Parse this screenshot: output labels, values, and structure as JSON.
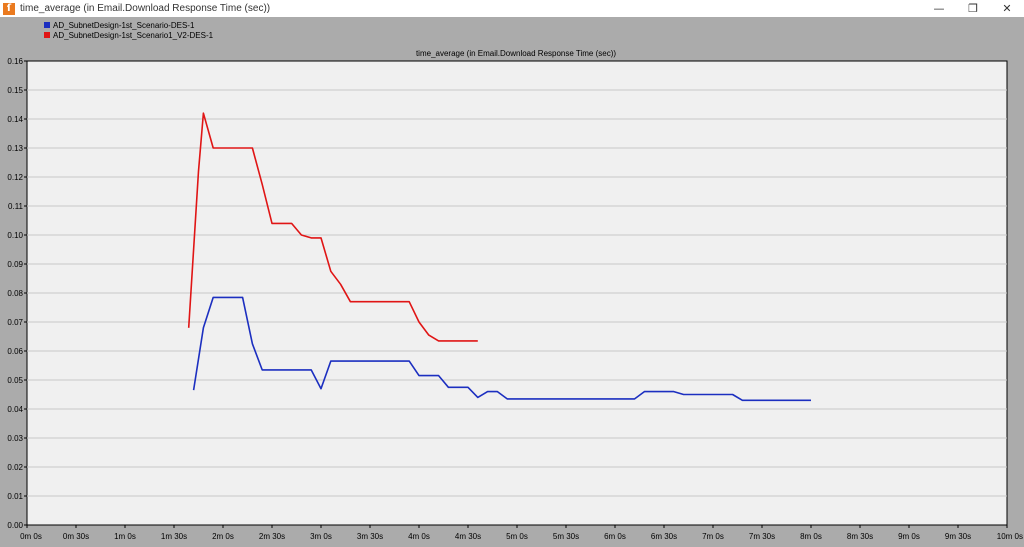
{
  "window": {
    "title": "time_average (in Email.Download Response Time (sec))",
    "icon": "app-icon"
  },
  "chart_data": {
    "type": "line",
    "title": "time_average (in Email.Download Response Time (sec))",
    "xlabel": "",
    "ylabel": "",
    "xlim": [
      0,
      600
    ],
    "ylim": [
      0,
      0.16
    ],
    "grid": true,
    "legend": "top-left",
    "x_ticks": [
      "0m 0s",
      "0m 30s",
      "1m 0s",
      "1m 30s",
      "2m 0s",
      "2m 30s",
      "3m 0s",
      "3m 30s",
      "4m 0s",
      "4m 30s",
      "5m 0s",
      "5m 30s",
      "6m 0s",
      "6m 30s",
      "7m 0s",
      "7m 30s",
      "8m 0s",
      "8m 30s",
      "9m 0s",
      "9m 30s",
      "10m 0s"
    ],
    "y_ticks": [
      "0.00",
      "0.01",
      "0.02",
      "0.03",
      "0.04",
      "0.05",
      "0.06",
      "0.07",
      "0.08",
      "0.09",
      "0.10",
      "0.11",
      "0.12",
      "0.13",
      "0.14",
      "0.15",
      "0.16"
    ],
    "series": [
      {
        "name": "AD_SubnetDesign-1st_Scenario-DES-1",
        "color": "#1c2fc0",
        "x": [
          102,
          108,
          114,
          120,
          126,
          132,
          138,
          144,
          150,
          156,
          162,
          168,
          174,
          180,
          186,
          192,
          198,
          204,
          210,
          216,
          222,
          228,
          234,
          240,
          246,
          252,
          258,
          264,
          270,
          276,
          282,
          288,
          294,
          300,
          306,
          312,
          318,
          324,
          330,
          336,
          342,
          348,
          354,
          360,
          366,
          372,
          378,
          384,
          390,
          396,
          402,
          408,
          414,
          420,
          426,
          432,
          438,
          444,
          450,
          456,
          462,
          468,
          474,
          480
        ],
        "values": [
          0.0465,
          0.068,
          0.0785,
          0.0785,
          0.0785,
          0.0785,
          0.0625,
          0.0535,
          0.0535,
          0.0535,
          0.0535,
          0.0535,
          0.0535,
          0.047,
          0.0565,
          0.0565,
          0.0565,
          0.0565,
          0.0565,
          0.0565,
          0.0565,
          0.0565,
          0.0565,
          0.0515,
          0.0515,
          0.0515,
          0.0475,
          0.0475,
          0.0475,
          0.044,
          0.046,
          0.046,
          0.0435,
          0.0435,
          0.0435,
          0.0435,
          0.0435,
          0.0435,
          0.0435,
          0.0435,
          0.0435,
          0.0435,
          0.0435,
          0.0435,
          0.0435,
          0.0435,
          0.046,
          0.046,
          0.046,
          0.046,
          0.045,
          0.045,
          0.045,
          0.045,
          0.045,
          0.045,
          0.043,
          0.043,
          0.043,
          0.043,
          0.043,
          0.043,
          0.043,
          0.043
        ]
      },
      {
        "name": "AD_SubnetDesign-1st_Scenario1_V2-DES-1",
        "color": "#e01515",
        "x": [
          99,
          105,
          108,
          114,
          120,
          126,
          132,
          138,
          144,
          150,
          156,
          162,
          168,
          174,
          180,
          186,
          192,
          198,
          204,
          210,
          216,
          222,
          228,
          234,
          240,
          246,
          252,
          258,
          264,
          270,
          276
        ],
        "values": [
          0.068,
          0.122,
          0.142,
          0.13,
          0.13,
          0.13,
          0.13,
          0.13,
          0.1175,
          0.104,
          0.104,
          0.104,
          0.1,
          0.099,
          0.099,
          0.0875,
          0.083,
          0.077,
          0.077,
          0.077,
          0.077,
          0.077,
          0.077,
          0.077,
          0.07,
          0.0655,
          0.0635,
          0.0635,
          0.0635,
          0.0635,
          0.0635
        ]
      }
    ]
  }
}
